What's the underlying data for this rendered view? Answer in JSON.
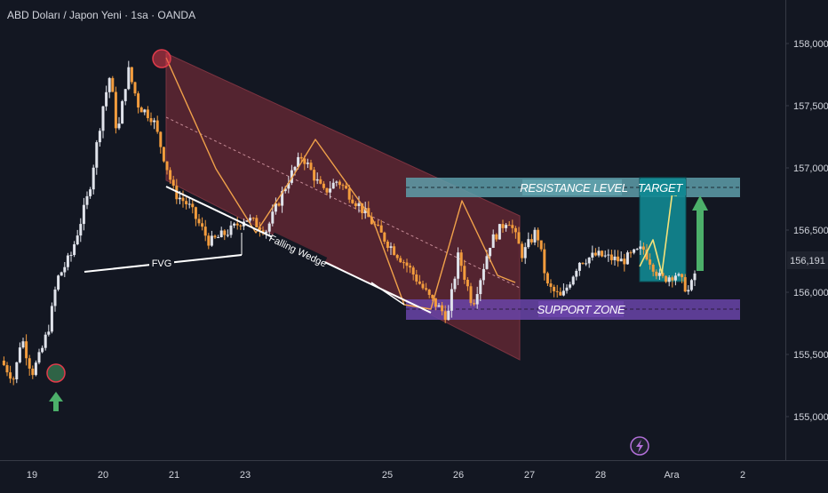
{
  "chart_data": {
    "type": "candlestick",
    "title": "ABD Doları / Japon Yeni · 1sa · OANDA",
    "y_axis": {
      "ticks": [
        155000,
        155500,
        156000,
        156500,
        157000,
        157500,
        158000
      ],
      "tick_labels": [
        "155,000",
        "155,500",
        "156,000",
        "156,500",
        "157,000",
        "157,500",
        "158,000"
      ],
      "range": [
        154650,
        158350
      ]
    },
    "x_axis": {
      "ticks": [
        {
          "label": "19",
          "t": 19
        },
        {
          "label": "20",
          "t": 20
        },
        {
          "label": "21",
          "t": 21
        },
        {
          "label": "23",
          "t": 22
        },
        {
          "label": "25",
          "t": 24
        },
        {
          "label": "26",
          "t": 25
        },
        {
          "label": "27",
          "t": 26
        },
        {
          "label": "28",
          "t": 27
        },
        {
          "label": "Ara",
          "t": 28
        },
        {
          "label": "2",
          "t": 29
        }
      ],
      "range": [
        18.55,
        29.6
      ]
    },
    "last_price": {
      "value": 156191,
      "label": "156,191"
    },
    "candle_colors": {
      "up": "#e0e3eb",
      "down": "#f39c3d"
    },
    "grid": false,
    "annotations": {
      "falling_wedge": {
        "label": "Falling Wedge"
      },
      "fvg": {
        "label": "FVG"
      },
      "resistance": {
        "label": "RESISTANCE LEVEL",
        "y_range": [
          156670,
          156850
        ],
        "level": 156750
      },
      "support": {
        "label": "SUPPORT ZONE",
        "y_range": [
          155700,
          155870
        ],
        "level": 155790
      },
      "target": {
        "label": "TARGET"
      }
    },
    "colors": {
      "background": "#131722",
      "channel": "#6b2a35",
      "resistance_fill": "#5e9ea9",
      "support_fill": "#6a44a8",
      "target_fill": "#128892",
      "arrow": "#4caf6a",
      "marker_red": "#e03b4b"
    }
  }
}
